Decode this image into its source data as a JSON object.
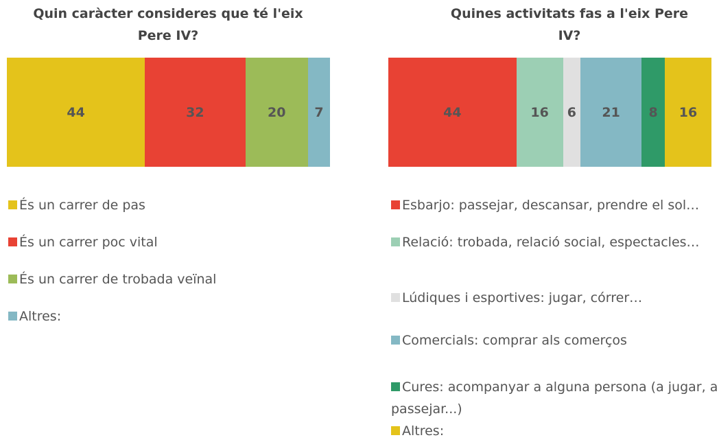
{
  "chart_data": [
    {
      "type": "bar",
      "stacked": true,
      "title": "Quin caràcter consideres que té l'eix Pere IV?",
      "series": [
        {
          "name": "És un carrer de pas",
          "color": "#e4c31b",
          "values": [
            44
          ]
        },
        {
          "name": "És un carrer poc vital",
          "color": "#e84234",
          "values": [
            32
          ]
        },
        {
          "name": "És un carrer de trobada veïnal",
          "color": "#9cbb58",
          "values": [
            20
          ]
        },
        {
          "name": "Altres:",
          "color": "#84b8c4",
          "values": [
            7
          ]
        }
      ]
    },
    {
      "type": "bar",
      "stacked": true,
      "title": "Quines activitats fas a l'eix Pere IV?",
      "series": [
        {
          "name": "Esbarjo: passejar, descansar, prendre el sol…",
          "color": "#e84234",
          "values": [
            44
          ]
        },
        {
          "name": "Relació: trobada, relació social, espectacles…",
          "color": "#9ccfb4",
          "values": [
            16
          ]
        },
        {
          "name": "Lúdiques i esportives: jugar, córrer…",
          "color": "#e0e0e0",
          "values": [
            6
          ]
        },
        {
          "name": "Comercials: comprar als comerços",
          "color": "#84b8c4",
          "values": [
            21
          ]
        },
        {
          "name": "Cures: acompanyar a alguna persona (a jugar, a passejar...)",
          "color": "#2f9a68",
          "values": [
            8
          ]
        },
        {
          "name": "Altres:",
          "color": "#e4c31b",
          "values": [
            16
          ]
        }
      ]
    }
  ]
}
